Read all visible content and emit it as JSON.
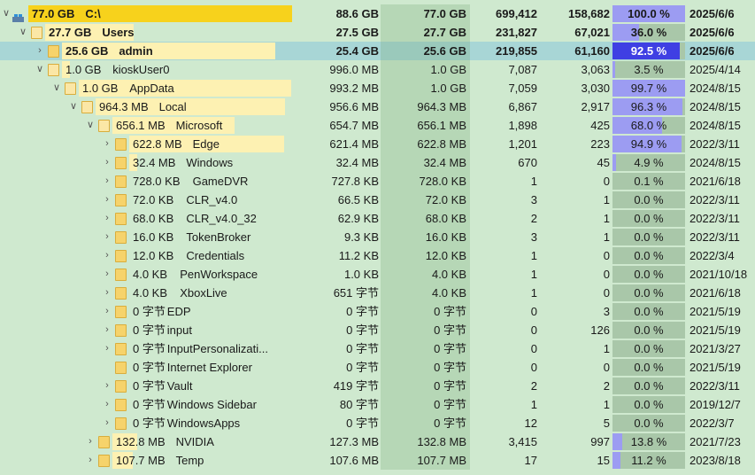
{
  "colors": {
    "background": "#cfe9cf",
    "selected_row": "#a8d6d6",
    "size_bar_root": "#f7d21c",
    "size_bar_child": "#fdf1b2",
    "percent_fill": "#9c9cf2",
    "percent_fill_selected": "#3f3fe3"
  },
  "rows": [
    {
      "level": 0,
      "chevron": "down",
      "icon": "drive-icon",
      "bold": true,
      "size_label": "77.0 GB",
      "name": "C:\\",
      "size": "88.6 GB",
      "allocated": "77.0 GB",
      "files": "699,412",
      "folders": "158,682",
      "percent": "100.0 %",
      "percent_value": 100.0,
      "modified": "2025/6/6",
      "bar_fraction": 1.0
    },
    {
      "level": 1,
      "chevron": "down",
      "icon": "folder-icon",
      "bold": true,
      "size_label": "27.7 GB",
      "name": "Users",
      "size": "27.5 GB",
      "allocated": "27.7 GB",
      "files": "231,827",
      "folders": "67,021",
      "percent": "36.0 %",
      "percent_value": 36.0,
      "modified": "2025/6/6",
      "bar_fraction": 0.36
    },
    {
      "level": 2,
      "chevron": "right",
      "icon": "folder-icon",
      "bold": true,
      "selected": true,
      "size_label": "25.6 GB",
      "name": "admin",
      "size": "25.4 GB",
      "allocated": "25.6 GB",
      "files": "219,855",
      "folders": "61,160",
      "percent": "92.5 %",
      "percent_value": 92.5,
      "modified": "2025/6/6",
      "bar_fraction": 0.925
    },
    {
      "level": 2,
      "chevron": "down",
      "icon": "folder-icon",
      "bold": false,
      "size_label": "1.0 GB",
      "name": "kioskUser0",
      "size": "996.0 MB",
      "allocated": "1.0 GB",
      "files": "7,087",
      "folders": "3,063",
      "percent": "3.5 %",
      "percent_value": 3.5,
      "modified": "2025/4/14",
      "bar_fraction": 0.035
    },
    {
      "level": 3,
      "chevron": "down",
      "icon": "folder-icon",
      "bold": false,
      "size_label": "1.0 GB",
      "name": "AppData",
      "size": "993.2 MB",
      "allocated": "1.0 GB",
      "files": "7,059",
      "folders": "3,030",
      "percent": "99.7 %",
      "percent_value": 99.7,
      "modified": "2024/8/15",
      "bar_fraction": 0.997
    },
    {
      "level": 4,
      "chevron": "down",
      "icon": "folder-icon",
      "bold": false,
      "size_label": "964.3 MB",
      "name": "Local",
      "size": "956.6 MB",
      "allocated": "964.3 MB",
      "files": "6,867",
      "folders": "2,917",
      "percent": "96.3 %",
      "percent_value": 96.3,
      "modified": "2024/8/15",
      "bar_fraction": 0.963
    },
    {
      "level": 5,
      "chevron": "down",
      "icon": "folder-icon",
      "bold": false,
      "size_label": "656.1 MB",
      "name": "Microsoft",
      "size": "654.7 MB",
      "allocated": "656.1 MB",
      "files": "1,898",
      "folders": "425",
      "percent": "68.0 %",
      "percent_value": 68.0,
      "modified": "2024/8/15",
      "bar_fraction": 0.68
    },
    {
      "level": 6,
      "chevron": "right",
      "icon": "folder-icon",
      "bold": false,
      "size_label": "622.8 MB",
      "name": "Edge",
      "size": "621.4 MB",
      "allocated": "622.8 MB",
      "files": "1,201",
      "folders": "223",
      "percent": "94.9 %",
      "percent_value": 94.9,
      "modified": "2022/3/11",
      "bar_fraction": 0.949
    },
    {
      "level": 6,
      "chevron": "right",
      "icon": "folder-icon",
      "bold": false,
      "size_label": "32.4 MB",
      "name": "Windows",
      "size": "32.4 MB",
      "allocated": "32.4 MB",
      "files": "670",
      "folders": "45",
      "percent": "4.9 %",
      "percent_value": 4.9,
      "modified": "2024/8/15",
      "bar_fraction": 0.049
    },
    {
      "level": 6,
      "chevron": "right",
      "icon": "folder-icon",
      "bold": false,
      "size_label": "728.0 KB",
      "name": "GameDVR",
      "size": "727.8 KB",
      "allocated": "728.0 KB",
      "files": "1",
      "folders": "0",
      "percent": "0.1 %",
      "percent_value": 0.1,
      "modified": "2021/6/18",
      "bar_fraction": 0.001
    },
    {
      "level": 6,
      "chevron": "right",
      "icon": "folder-icon",
      "bold": false,
      "size_label": "72.0 KB",
      "name": "CLR_v4.0",
      "size": "66.5 KB",
      "allocated": "72.0 KB",
      "files": "3",
      "folders": "1",
      "percent": "0.0 %",
      "percent_value": 0.0,
      "modified": "2022/3/11",
      "bar_fraction": 0.0
    },
    {
      "level": 6,
      "chevron": "right",
      "icon": "folder-icon",
      "bold": false,
      "size_label": "68.0 KB",
      "name": "CLR_v4.0_32",
      "size": "62.9 KB",
      "allocated": "68.0 KB",
      "files": "2",
      "folders": "1",
      "percent": "0.0 %",
      "percent_value": 0.0,
      "modified": "2022/3/11",
      "bar_fraction": 0.0
    },
    {
      "level": 6,
      "chevron": "right",
      "icon": "folder-icon",
      "bold": false,
      "size_label": "16.0 KB",
      "name": "TokenBroker",
      "size": "9.3 KB",
      "allocated": "16.0 KB",
      "files": "3",
      "folders": "1",
      "percent": "0.0 %",
      "percent_value": 0.0,
      "modified": "2022/3/11",
      "bar_fraction": 0.0
    },
    {
      "level": 6,
      "chevron": "right",
      "icon": "folder-icon",
      "bold": false,
      "size_label": "12.0 KB",
      "name": "Credentials",
      "size": "11.2 KB",
      "allocated": "12.0 KB",
      "files": "1",
      "folders": "0",
      "percent": "0.0 %",
      "percent_value": 0.0,
      "modified": "2022/3/4",
      "bar_fraction": 0.0
    },
    {
      "level": 6,
      "chevron": "right",
      "icon": "folder-icon",
      "bold": false,
      "size_label": "4.0 KB",
      "name": "PenWorkspace",
      "size": "1.0 KB",
      "allocated": "4.0 KB",
      "files": "1",
      "folders": "0",
      "percent": "0.0 %",
      "percent_value": 0.0,
      "modified": "2021/10/18",
      "bar_fraction": 0.0
    },
    {
      "level": 6,
      "chevron": "right",
      "icon": "folder-icon",
      "bold": false,
      "size_label": "4.0 KB",
      "name": "XboxLive",
      "size": "651 字节",
      "allocated": "4.0 KB",
      "files": "1",
      "folders": "0",
      "percent": "0.0 %",
      "percent_value": 0.0,
      "modified": "2021/6/18",
      "bar_fraction": 0.0
    },
    {
      "level": 6,
      "chevron": "right",
      "icon": "folder-icon",
      "bold": false,
      "size_label": "0 字节",
      "name": "EDP",
      "size": "0 字节",
      "allocated": "0 字节",
      "files": "0",
      "folders": "3",
      "percent": "0.0 %",
      "percent_value": 0.0,
      "modified": "2021/5/19",
      "bar_fraction": 0.0
    },
    {
      "level": 6,
      "chevron": "right",
      "icon": "folder-icon",
      "bold": false,
      "size_label": "0 字节",
      "name": "input",
      "size": "0 字节",
      "allocated": "0 字节",
      "files": "0",
      "folders": "126",
      "percent": "0.0 %",
      "percent_value": 0.0,
      "modified": "2021/5/19",
      "bar_fraction": 0.0
    },
    {
      "level": 6,
      "chevron": "right",
      "icon": "folder-icon",
      "bold": false,
      "size_label": "0 字节",
      "name": "InputPersonalizati...",
      "size": "0 字节",
      "allocated": "0 字节",
      "files": "0",
      "folders": "1",
      "percent": "0.0 %",
      "percent_value": 0.0,
      "modified": "2021/3/27",
      "bar_fraction": 0.0
    },
    {
      "level": 6,
      "chevron": "none",
      "icon": "folder-icon",
      "bold": false,
      "size_label": "0 字节",
      "name": "Internet Explorer",
      "size": "0 字节",
      "allocated": "0 字节",
      "files": "0",
      "folders": "0",
      "percent": "0.0 %",
      "percent_value": 0.0,
      "modified": "2021/5/19",
      "bar_fraction": 0.0
    },
    {
      "level": 6,
      "chevron": "right",
      "icon": "folder-icon",
      "bold": false,
      "size_label": "0 字节",
      "name": "Vault",
      "size": "419 字节",
      "allocated": "0 字节",
      "files": "2",
      "folders": "2",
      "percent": "0.0 %",
      "percent_value": 0.0,
      "modified": "2022/3/11",
      "bar_fraction": 0.0
    },
    {
      "level": 6,
      "chevron": "right",
      "icon": "folder-icon",
      "bold": false,
      "size_label": "0 字节",
      "name": "Windows Sidebar",
      "size": "80 字节",
      "allocated": "0 字节",
      "files": "1",
      "folders": "1",
      "percent": "0.0 %",
      "percent_value": 0.0,
      "modified": "2019/12/7",
      "bar_fraction": 0.0
    },
    {
      "level": 6,
      "chevron": "right",
      "icon": "folder-icon",
      "bold": false,
      "size_label": "0 字节",
      "name": "WindowsApps",
      "size": "0 字节",
      "allocated": "0 字节",
      "files": "12",
      "folders": "5",
      "percent": "0.0 %",
      "percent_value": 0.0,
      "modified": "2022/3/7",
      "bar_fraction": 0.0
    },
    {
      "level": 5,
      "chevron": "right",
      "icon": "folder-icon",
      "bold": false,
      "size_label": "132.8 MB",
      "name": "NVIDIA",
      "size": "127.3 MB",
      "allocated": "132.8 MB",
      "files": "3,415",
      "folders": "997",
      "percent": "13.8 %",
      "percent_value": 13.8,
      "modified": "2021/7/23",
      "bar_fraction": 0.138
    },
    {
      "level": 5,
      "chevron": "right",
      "icon": "folder-icon",
      "bold": false,
      "size_label": "107.7 MB",
      "name": "Temp",
      "size": "107.6 MB",
      "allocated": "107.7 MB",
      "files": "17",
      "folders": "15",
      "percent": "11.2 %",
      "percent_value": 11.2,
      "modified": "2023/8/18",
      "bar_fraction": 0.112
    }
  ]
}
